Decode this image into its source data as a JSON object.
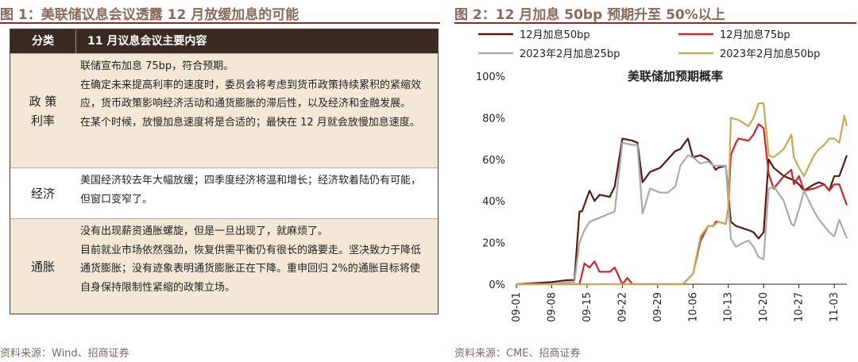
{
  "left": {
    "figure_title": "图 1：美联储议息会议透露 12 月放缓加息的可能",
    "table": {
      "headers": [
        "分类",
        "11 月议息会议主要内容"
      ],
      "rows": [
        {
          "category": "政 策\n利率",
          "lines": [
            "联储宣布加息 75bp，符合预期。",
            "在确定未来提高利率的速度时，委员会将考虑到货币政策持续累积的紧缩效应，货币政策影响经济活动和通货膨胀的滞后性，以及经济和金融发展。",
            "在某个时候，放慢加息速度将是合适的；最快在 12 月就会放慢加息速度。"
          ]
        },
        {
          "category": "经济",
          "lines": [
            "美国经济较去年大幅放缓；四季度经济将温和增长；经济软着陆仍有可能，但窗口变窄了。"
          ]
        },
        {
          "category": "通胀",
          "lines": [
            "没有出现薪资通胀螺旋，但是一旦出现了，就麻烦了。",
            "目前就业市场依然强劲，恢复供需平衡仍有很长的路要走。坚决致力于降低通货膨胀；没有迹象表明通货膨胀正在下降。重申回归 2%的通胀目标将使自身保持限制性紧缩的政策立场。"
          ]
        }
      ]
    },
    "source": "资料来源：Wind、招商证券"
  },
  "right": {
    "figure_title": "图 2：12 月加息 50bp 预期升至 50%以上",
    "source": "资料来源：CME、招商证券"
  },
  "chart_data": {
    "type": "line",
    "title": "美联储加预期概率",
    "xlabel": "",
    "ylabel": "",
    "ylim": [
      0,
      100
    ],
    "y_ticks": [
      "0%",
      "20%",
      "40%",
      "60%",
      "80%",
      "100%"
    ],
    "x_ticks": [
      "09-01",
      "09-08",
      "09-15",
      "09-22",
      "09-29",
      "10-06",
      "10-13",
      "10-20",
      "10-27",
      "11-03"
    ],
    "x_tick_days": [
      0,
      7,
      14,
      21,
      28,
      35,
      42,
      49,
      56,
      63
    ],
    "x_range_days": [
      0,
      65.5
    ],
    "legend_position": "top",
    "grid": false,
    "series": [
      {
        "name": "12月加息50bp",
        "color": "#5a1a12",
        "points": [
          [
            0,
            0
          ],
          [
            7,
            1
          ],
          [
            10,
            2
          ],
          [
            11.5,
            2
          ],
          [
            12.5,
            35
          ],
          [
            13,
            35
          ],
          [
            14.5,
            45
          ],
          [
            15.5,
            40
          ],
          [
            16.5,
            43
          ],
          [
            18.5,
            42
          ],
          [
            19.5,
            47
          ],
          [
            21,
            70
          ],
          [
            23,
            69
          ],
          [
            24,
            68
          ],
          [
            25,
            49
          ],
          [
            26.5,
            54
          ],
          [
            28.5,
            56
          ],
          [
            30,
            60
          ],
          [
            31.5,
            64
          ],
          [
            32.5,
            65
          ],
          [
            34,
            70
          ],
          [
            35,
            61
          ],
          [
            36.5,
            62
          ],
          [
            38,
            60
          ],
          [
            39,
            57
          ],
          [
            39.5,
            55
          ],
          [
            40,
            56
          ],
          [
            41.5,
            57
          ],
          [
            42.5,
            30
          ],
          [
            43.5,
            28
          ],
          [
            46,
            26
          ],
          [
            47,
            25
          ],
          [
            48,
            22
          ],
          [
            49,
            25
          ],
          [
            50,
            60
          ],
          [
            51,
            56
          ],
          [
            53,
            52
          ],
          [
            55,
            50
          ],
          [
            56,
            48
          ],
          [
            57,
            45
          ],
          [
            59,
            48
          ],
          [
            60,
            49
          ],
          [
            61,
            48
          ],
          [
            62,
            45
          ],
          [
            63,
            52
          ],
          [
            64,
            52
          ],
          [
            65.5,
            62
          ]
        ]
      },
      {
        "name": "12月加息75bp",
        "color": "#c8282a",
        "points": [
          [
            0,
            0
          ],
          [
            12.5,
            0
          ],
          [
            13.5,
            10
          ],
          [
            14.5,
            8
          ],
          [
            15.5,
            11
          ],
          [
            16.5,
            6
          ],
          [
            18.5,
            6
          ],
          [
            19.5,
            8
          ],
          [
            21,
            0
          ],
          [
            22,
            3
          ],
          [
            23,
            0
          ],
          [
            33,
            0
          ],
          [
            35,
            5
          ],
          [
            36.5,
            21
          ],
          [
            38,
            28
          ],
          [
            39,
            28
          ],
          [
            39.5,
            30
          ],
          [
            40,
            30
          ],
          [
            41.5,
            29
          ],
          [
            42,
            36
          ],
          [
            42.5,
            62
          ],
          [
            43.5,
            68
          ],
          [
            44,
            70
          ],
          [
            46,
            69
          ],
          [
            47,
            72
          ],
          [
            48,
            77
          ],
          [
            49,
            75
          ],
          [
            50,
            53
          ],
          [
            51,
            46
          ],
          [
            53,
            52
          ],
          [
            54.5,
            55
          ],
          [
            55,
            48
          ],
          [
            56,
            52
          ],
          [
            57,
            45
          ],
          [
            59,
            46
          ],
          [
            60,
            47
          ],
          [
            61,
            48
          ],
          [
            62,
            45
          ],
          [
            63,
            48
          ],
          [
            64,
            48
          ],
          [
            65.5,
            38
          ]
        ]
      },
      {
        "name": "2023年2月加息25bp",
        "color": "#aaaaaa",
        "points": [
          [
            0,
            0
          ],
          [
            7,
            0
          ],
          [
            10,
            1
          ],
          [
            11.5,
            1
          ],
          [
            12.5,
            20
          ],
          [
            13.5,
            26
          ],
          [
            14.5,
            30
          ],
          [
            15.5,
            31
          ],
          [
            18.5,
            34
          ],
          [
            19.5,
            35
          ],
          [
            21,
            68
          ],
          [
            23,
            67
          ],
          [
            24,
            67
          ],
          [
            25,
            34
          ],
          [
            26.5,
            46
          ],
          [
            28.5,
            44
          ],
          [
            30,
            44
          ],
          [
            31.5,
            47
          ],
          [
            32.5,
            57
          ],
          [
            34,
            62
          ],
          [
            35,
            61
          ],
          [
            36.5,
            58
          ],
          [
            38,
            59
          ],
          [
            39,
            57
          ],
          [
            39.5,
            57
          ],
          [
            40,
            57
          ],
          [
            41.5,
            57
          ],
          [
            42.5,
            22
          ],
          [
            43.5,
            18
          ],
          [
            45,
            20
          ],
          [
            46,
            21
          ],
          [
            47,
            18
          ],
          [
            48,
            13
          ],
          [
            49,
            12
          ],
          [
            50,
            46
          ],
          [
            51,
            47
          ],
          [
            53,
            40
          ],
          [
            54.5,
            29
          ],
          [
            55,
            28
          ],
          [
            56,
            36
          ],
          [
            57,
            45
          ],
          [
            59,
            35
          ],
          [
            60,
            31
          ],
          [
            61,
            28
          ],
          [
            62,
            25
          ],
          [
            63,
            23
          ],
          [
            64,
            31
          ],
          [
            65.5,
            22
          ]
        ]
      },
      {
        "name": "2023年2月加息50bp",
        "color": "#c8a850",
        "points": [
          [
            0,
            0
          ],
          [
            33,
            0
          ],
          [
            35,
            5
          ],
          [
            36.5,
            23
          ],
          [
            38,
            28
          ],
          [
            39,
            28
          ],
          [
            39.5,
            29
          ],
          [
            40,
            30
          ],
          [
            41.5,
            29
          ],
          [
            42,
            35
          ],
          [
            42.5,
            80
          ],
          [
            44,
            79
          ],
          [
            46,
            76
          ],
          [
            47,
            80
          ],
          [
            48,
            87
          ],
          [
            49,
            87
          ],
          [
            50,
            62
          ],
          [
            51,
            61
          ],
          [
            53,
            65
          ],
          [
            54.5,
            72
          ],
          [
            55,
            61
          ],
          [
            56,
            56
          ],
          [
            57,
            52
          ],
          [
            59,
            62
          ],
          [
            60,
            65
          ],
          [
            61,
            67
          ],
          [
            62,
            70
          ],
          [
            63,
            70
          ],
          [
            64,
            68
          ],
          [
            65,
            81
          ],
          [
            65.5,
            76
          ]
        ]
      }
    ]
  }
}
